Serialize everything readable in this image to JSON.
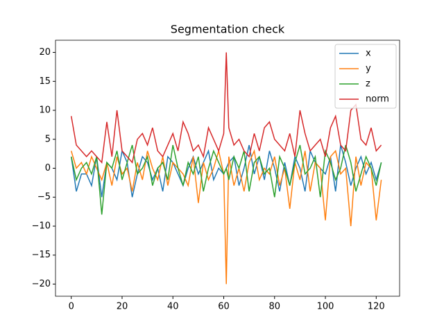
{
  "chart_data": {
    "type": "line",
    "title": "Segmentation check",
    "x": [
      0,
      2,
      4,
      6,
      8,
      10,
      12,
      14,
      16,
      18,
      20,
      22,
      24,
      26,
      28,
      30,
      32,
      34,
      36,
      38,
      40,
      42,
      44,
      46,
      48,
      50,
      52,
      54,
      56,
      58,
      60,
      61,
      62,
      64,
      66,
      68,
      70,
      72,
      74,
      76,
      78,
      80,
      82,
      84,
      86,
      88,
      90,
      92,
      94,
      96,
      98,
      100,
      102,
      104,
      106,
      108,
      110,
      112,
      114,
      116,
      118,
      120,
      122
    ],
    "series": [
      {
        "name": "x",
        "color": "#1f77b4",
        "values": [
          2,
          -4,
          -1,
          -1,
          -3,
          2,
          -5,
          1,
          0,
          -2,
          3,
          1,
          -5,
          -1,
          2,
          1,
          -2,
          0,
          -4,
          2,
          1,
          -1,
          -3,
          0,
          2,
          -1,
          1,
          3,
          -2,
          0,
          -1,
          0,
          1,
          2,
          -3,
          0,
          4,
          -1,
          2,
          -2,
          3,
          0,
          -4,
          1,
          -3,
          2,
          0,
          -4,
          3,
          1,
          0,
          -1,
          2,
          -4,
          4,
          1,
          -3,
          0,
          2,
          -1,
          1,
          -2,
          1
        ]
      },
      {
        "name": "y",
        "color": "#ff7f0e",
        "values": [
          3,
          0,
          1,
          -1,
          2,
          0,
          -2,
          1,
          -3,
          2,
          -1,
          0,
          -4,
          1,
          -2,
          3,
          0,
          -2,
          2,
          -3,
          1,
          0,
          -1,
          -3,
          2,
          -6,
          1,
          -2,
          0,
          3,
          -1,
          -20,
          2,
          -3,
          0,
          -4,
          1,
          3,
          -2,
          0,
          -1,
          2,
          -3,
          0,
          -7,
          1,
          -2,
          3,
          -4,
          1,
          0,
          -9,
          2,
          3,
          -1,
          0,
          -10,
          2,
          -3,
          1,
          0,
          -9,
          -2
        ]
      },
      {
        "name": "z",
        "color": "#2ca02c",
        "values": [
          2,
          -2,
          0,
          1,
          -1,
          2,
          -8,
          1,
          0,
          3,
          -2,
          1,
          4,
          -1,
          0,
          2,
          -3,
          0,
          1,
          -2,
          4,
          0,
          -3,
          1,
          -1,
          2,
          -4,
          0,
          3,
          1,
          -1,
          0,
          -2,
          2,
          0,
          3,
          -4,
          1,
          2,
          -1,
          0,
          -5,
          2,
          0,
          -3,
          1,
          4,
          -1,
          0,
          2,
          -5,
          3,
          1,
          -2,
          0,
          4,
          1,
          -4,
          -1,
          2,
          0,
          -3,
          1
        ]
      },
      {
        "name": "norm",
        "color": "#d62728",
        "values": [
          9,
          4,
          3,
          2,
          3,
          2,
          1,
          8,
          2,
          10,
          3,
          2,
          1,
          5,
          6,
          4,
          7,
          3,
          2,
          4,
          6,
          3,
          8,
          6,
          3,
          4,
          2,
          7,
          5,
          3,
          6,
          20,
          7,
          4,
          5,
          3,
          2,
          6,
          3,
          7,
          8,
          5,
          4,
          3,
          6,
          2,
          10,
          6,
          3,
          4,
          5,
          2,
          7,
          9,
          4,
          3,
          10,
          11,
          5,
          4,
          7,
          3,
          4
        ]
      }
    ],
    "xlim": [
      -6.2,
      129.2
    ],
    "ylim": [
      -22.1,
      22.1
    ],
    "xticks": [
      0,
      20,
      40,
      60,
      80,
      100,
      120
    ],
    "yticks": [
      {
        "value": -20,
        "label": "−20"
      },
      {
        "value": -15,
        "label": "−15"
      },
      {
        "value": -10,
        "label": "−10"
      },
      {
        "value": -5,
        "label": "−5"
      },
      0,
      5,
      10,
      15,
      20
    ],
    "legend": "upper right"
  }
}
